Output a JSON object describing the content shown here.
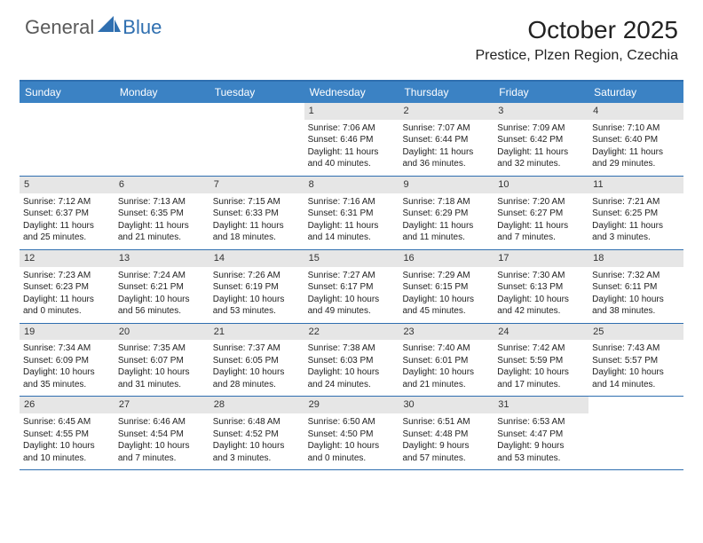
{
  "brand": {
    "part1": "General",
    "part2": "Blue"
  },
  "title": "October 2025",
  "location": "Prestice, Plzen Region, Czechia",
  "colors": {
    "accent": "#3b82c4",
    "rule": "#2f6fb0",
    "daybar": "#e6e6e6",
    "text": "#222222",
    "logo_gray": "#5a5a5a",
    "logo_blue": "#2f6fb0",
    "bg": "#ffffff"
  },
  "weekdays": [
    "Sunday",
    "Monday",
    "Tuesday",
    "Wednesday",
    "Thursday",
    "Friday",
    "Saturday"
  ],
  "weeks": [
    [
      null,
      null,
      null,
      {
        "n": "1",
        "sr": "7:06 AM",
        "ss": "6:46 PM",
        "dl": "11 hours and 40 minutes."
      },
      {
        "n": "2",
        "sr": "7:07 AM",
        "ss": "6:44 PM",
        "dl": "11 hours and 36 minutes."
      },
      {
        "n": "3",
        "sr": "7:09 AM",
        "ss": "6:42 PM",
        "dl": "11 hours and 32 minutes."
      },
      {
        "n": "4",
        "sr": "7:10 AM",
        "ss": "6:40 PM",
        "dl": "11 hours and 29 minutes."
      }
    ],
    [
      {
        "n": "5",
        "sr": "7:12 AM",
        "ss": "6:37 PM",
        "dl": "11 hours and 25 minutes."
      },
      {
        "n": "6",
        "sr": "7:13 AM",
        "ss": "6:35 PM",
        "dl": "11 hours and 21 minutes."
      },
      {
        "n": "7",
        "sr": "7:15 AM",
        "ss": "6:33 PM",
        "dl": "11 hours and 18 minutes."
      },
      {
        "n": "8",
        "sr": "7:16 AM",
        "ss": "6:31 PM",
        "dl": "11 hours and 14 minutes."
      },
      {
        "n": "9",
        "sr": "7:18 AM",
        "ss": "6:29 PM",
        "dl": "11 hours and 11 minutes."
      },
      {
        "n": "10",
        "sr": "7:20 AM",
        "ss": "6:27 PM",
        "dl": "11 hours and 7 minutes."
      },
      {
        "n": "11",
        "sr": "7:21 AM",
        "ss": "6:25 PM",
        "dl": "11 hours and 3 minutes."
      }
    ],
    [
      {
        "n": "12",
        "sr": "7:23 AM",
        "ss": "6:23 PM",
        "dl": "11 hours and 0 minutes."
      },
      {
        "n": "13",
        "sr": "7:24 AM",
        "ss": "6:21 PM",
        "dl": "10 hours and 56 minutes."
      },
      {
        "n": "14",
        "sr": "7:26 AM",
        "ss": "6:19 PM",
        "dl": "10 hours and 53 minutes."
      },
      {
        "n": "15",
        "sr": "7:27 AM",
        "ss": "6:17 PM",
        "dl": "10 hours and 49 minutes."
      },
      {
        "n": "16",
        "sr": "7:29 AM",
        "ss": "6:15 PM",
        "dl": "10 hours and 45 minutes."
      },
      {
        "n": "17",
        "sr": "7:30 AM",
        "ss": "6:13 PM",
        "dl": "10 hours and 42 minutes."
      },
      {
        "n": "18",
        "sr": "7:32 AM",
        "ss": "6:11 PM",
        "dl": "10 hours and 38 minutes."
      }
    ],
    [
      {
        "n": "19",
        "sr": "7:34 AM",
        "ss": "6:09 PM",
        "dl": "10 hours and 35 minutes."
      },
      {
        "n": "20",
        "sr": "7:35 AM",
        "ss": "6:07 PM",
        "dl": "10 hours and 31 minutes."
      },
      {
        "n": "21",
        "sr": "7:37 AM",
        "ss": "6:05 PM",
        "dl": "10 hours and 28 minutes."
      },
      {
        "n": "22",
        "sr": "7:38 AM",
        "ss": "6:03 PM",
        "dl": "10 hours and 24 minutes."
      },
      {
        "n": "23",
        "sr": "7:40 AM",
        "ss": "6:01 PM",
        "dl": "10 hours and 21 minutes."
      },
      {
        "n": "24",
        "sr": "7:42 AM",
        "ss": "5:59 PM",
        "dl": "10 hours and 17 minutes."
      },
      {
        "n": "25",
        "sr": "7:43 AM",
        "ss": "5:57 PM",
        "dl": "10 hours and 14 minutes."
      }
    ],
    [
      {
        "n": "26",
        "sr": "6:45 AM",
        "ss": "4:55 PM",
        "dl": "10 hours and 10 minutes."
      },
      {
        "n": "27",
        "sr": "6:46 AM",
        "ss": "4:54 PM",
        "dl": "10 hours and 7 minutes."
      },
      {
        "n": "28",
        "sr": "6:48 AM",
        "ss": "4:52 PM",
        "dl": "10 hours and 3 minutes."
      },
      {
        "n": "29",
        "sr": "6:50 AM",
        "ss": "4:50 PM",
        "dl": "10 hours and 0 minutes."
      },
      {
        "n": "30",
        "sr": "6:51 AM",
        "ss": "4:48 PM",
        "dl": "9 hours and 57 minutes."
      },
      {
        "n": "31",
        "sr": "6:53 AM",
        "ss": "4:47 PM",
        "dl": "9 hours and 53 minutes."
      },
      null
    ]
  ],
  "labels": {
    "sunrise": "Sunrise:",
    "sunset": "Sunset:",
    "daylight": "Daylight:"
  }
}
